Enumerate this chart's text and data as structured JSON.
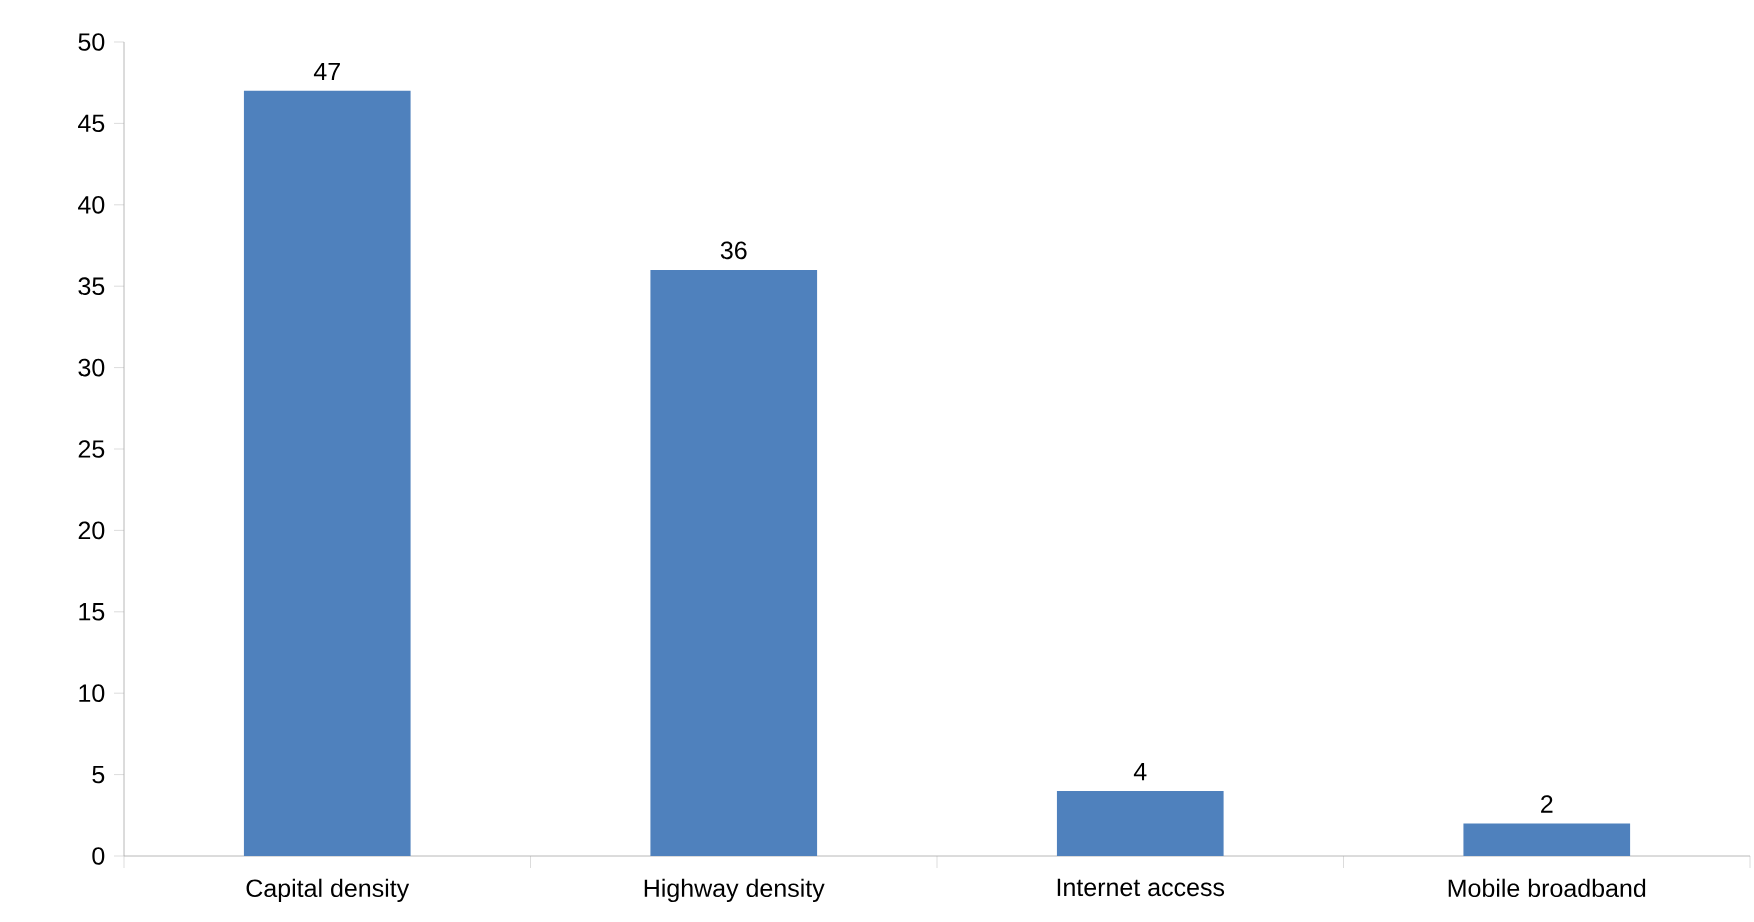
{
  "chart_data": {
    "type": "bar",
    "categories": [
      "Capital density",
      "Highway density",
      "Internet access",
      "Mobile broadband"
    ],
    "values": [
      47,
      36,
      4,
      2
    ],
    "color": "#4f81bd",
    "ylim": [
      0,
      50
    ],
    "yticks": [
      0,
      5,
      10,
      15,
      20,
      25,
      30,
      35,
      40,
      45,
      50
    ],
    "data_labels": true,
    "grid": false
  }
}
